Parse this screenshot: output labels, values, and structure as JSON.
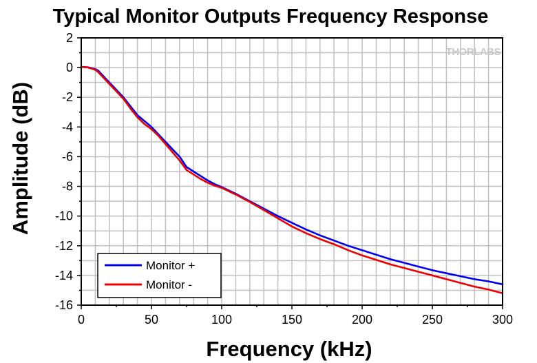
{
  "brand_watermark": "THORLABS",
  "chart_data": {
    "type": "line",
    "title": "Typical Monitor Outputs Frequency Response",
    "xlabel": "Frequency (kHz)",
    "ylabel": "Amplitude (dB)",
    "xlim": [
      0,
      300
    ],
    "ylim": [
      -16,
      2
    ],
    "xticks": [
      0,
      50,
      100,
      150,
      200,
      250,
      300
    ],
    "yticks": [
      2,
      0,
      -2,
      -4,
      -6,
      -8,
      -10,
      -12,
      -14,
      -16
    ],
    "grid": true,
    "legend_position": "bottom-left",
    "series": [
      {
        "name": "Monitor +",
        "color": "#0000ee",
        "x": [
          0,
          5,
          10,
          12,
          15,
          20,
          25,
          30,
          35,
          40,
          45,
          50,
          55,
          60,
          65,
          70,
          75,
          80,
          85,
          90,
          95,
          100,
          110,
          120,
          130,
          140,
          150,
          160,
          170,
          180,
          190,
          200,
          210,
          220,
          230,
          240,
          250,
          260,
          270,
          280,
          290,
          300
        ],
        "y": [
          0.05,
          0.02,
          -0.1,
          -0.2,
          -0.5,
          -1.0,
          -1.5,
          -2.0,
          -2.6,
          -3.2,
          -3.6,
          -4.0,
          -4.5,
          -5.0,
          -5.5,
          -6.0,
          -6.7,
          -7.0,
          -7.3,
          -7.6,
          -7.85,
          -8.05,
          -8.5,
          -9.0,
          -9.5,
          -10.0,
          -10.45,
          -10.9,
          -11.3,
          -11.65,
          -12.0,
          -12.3,
          -12.6,
          -12.9,
          -13.15,
          -13.4,
          -13.65,
          -13.85,
          -14.05,
          -14.25,
          -14.4,
          -14.6
        ]
      },
      {
        "name": "Monitor -",
        "color": "#ee0000",
        "x": [
          0,
          5,
          10,
          12,
          15,
          20,
          25,
          30,
          35,
          40,
          45,
          50,
          55,
          60,
          65,
          70,
          75,
          80,
          85,
          90,
          95,
          100,
          110,
          120,
          130,
          140,
          150,
          160,
          170,
          180,
          190,
          200,
          210,
          220,
          230,
          240,
          250,
          260,
          270,
          280,
          290,
          300
        ],
        "y": [
          0.05,
          0.0,
          -0.15,
          -0.3,
          -0.6,
          -1.1,
          -1.6,
          -2.1,
          -2.75,
          -3.35,
          -3.8,
          -4.15,
          -4.6,
          -5.15,
          -5.7,
          -6.25,
          -6.9,
          -7.2,
          -7.5,
          -7.75,
          -7.95,
          -8.1,
          -8.55,
          -9.05,
          -9.6,
          -10.15,
          -10.7,
          -11.15,
          -11.55,
          -11.9,
          -12.3,
          -12.65,
          -12.95,
          -13.25,
          -13.5,
          -13.75,
          -14.0,
          -14.25,
          -14.5,
          -14.75,
          -14.95,
          -15.2
        ]
      }
    ]
  }
}
